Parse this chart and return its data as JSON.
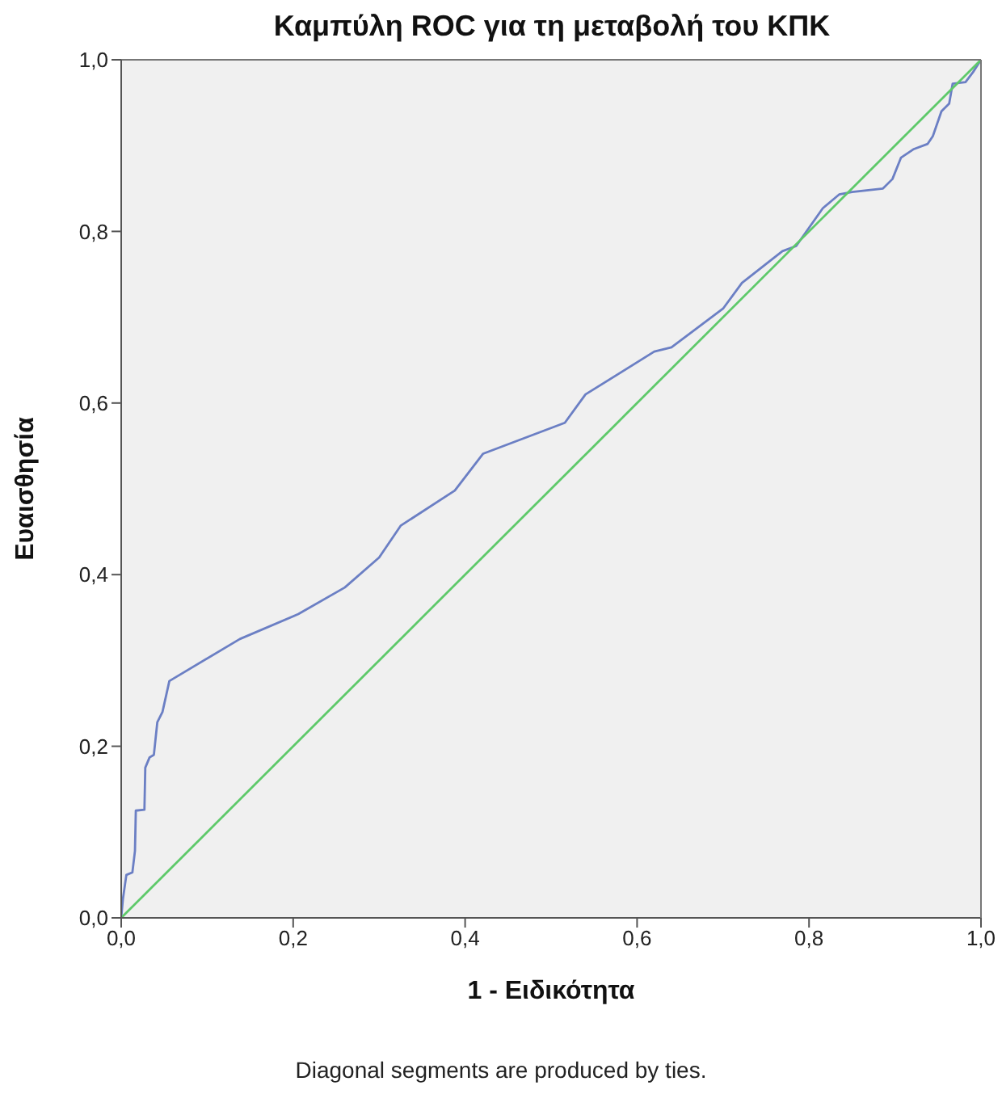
{
  "chart_data": {
    "type": "line",
    "title": "Καμπύλη ROC για τη μεταβολή του ΚΠΚ",
    "xlabel": "1 - Ειδικότητα",
    "ylabel": "Ευαισθησία",
    "annotations": [
      "Diagonal segments are produced by ties."
    ],
    "xlim": [
      0,
      1
    ],
    "ylim": [
      0,
      1
    ],
    "xticks": [
      {
        "value": 0,
        "label": "0,0"
      },
      {
        "value": 0.2,
        "label": "0,2"
      },
      {
        "value": 0.4,
        "label": "0,4"
      },
      {
        "value": 0.6,
        "label": "0,6"
      },
      {
        "value": 0.8,
        "label": "0,8"
      },
      {
        "value": 1,
        "label": "1,0"
      }
    ],
    "yticks": [
      {
        "value": 0,
        "label": "0,0"
      },
      {
        "value": 0.2,
        "label": "0,2"
      },
      {
        "value": 0.4,
        "label": "0,4"
      },
      {
        "value": 0.6,
        "label": "0,6"
      },
      {
        "value": 0.8,
        "label": "0,8"
      },
      {
        "value": 1,
        "label": "1,0"
      }
    ],
    "grid": false,
    "marker": "none",
    "line_style": "solid",
    "series": [
      {
        "color": "#6b7fc4",
        "x": [
          0,
          0.002,
          0.006,
          0.013,
          0.016,
          0.017,
          0.027,
          0.028,
          0.033,
          0.038,
          0.042,
          0.048,
          0.056,
          0.138,
          0.206,
          0.26,
          0.3,
          0.325,
          0.388,
          0.421,
          0.516,
          0.54,
          0.62,
          0.64,
          0.7,
          0.722,
          0.769,
          0.785,
          0.816,
          0.835,
          0.85,
          0.886,
          0.897,
          0.907,
          0.922,
          0.938,
          0.944,
          0.954,
          0.963,
          0.967,
          0.982,
          0.991,
          1
        ],
        "values": [
          0,
          0.022,
          0.05,
          0.053,
          0.078,
          0.125,
          0.126,
          0.175,
          0.187,
          0.19,
          0.228,
          0.24,
          0.276,
          0.325,
          0.354,
          0.385,
          0.42,
          0.457,
          0.498,
          0.541,
          0.577,
          0.61,
          0.66,
          0.665,
          0.71,
          0.74,
          0.777,
          0.783,
          0.827,
          0.843,
          0.846,
          0.85,
          0.861,
          0.886,
          0.896,
          0.902,
          0.911,
          0.94,
          0.949,
          0.972,
          0.974,
          0.986,
          1
        ]
      },
      {
        "color": "#5ec96a",
        "x": [
          0,
          1
        ],
        "values": [
          0,
          1
        ]
      }
    ]
  }
}
